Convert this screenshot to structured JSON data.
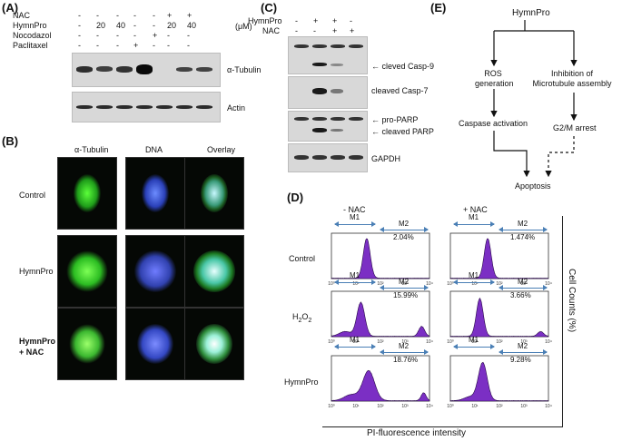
{
  "panelA": {
    "letter": "(A)",
    "rows": [
      {
        "name": "NAC",
        "values": [
          "-",
          "-",
          "-",
          "-",
          "-",
          "+",
          "+"
        ]
      },
      {
        "name": "HymnPro",
        "values": [
          "-",
          "20",
          "40",
          "-",
          "-",
          "20",
          "40"
        ]
      },
      {
        "name": "Nocodazol",
        "values": [
          "-",
          "-",
          "-",
          "-",
          "+",
          "-",
          "-"
        ]
      },
      {
        "name": "Paclitaxel",
        "values": [
          "-",
          "-",
          "-",
          "+",
          "-",
          "-",
          "-"
        ]
      }
    ],
    "unit": "(μM)",
    "blot_labels": [
      "α-Tubulin",
      "Actin"
    ],
    "tubulin_intensity": [
      0.55,
      0.35,
      0.5,
      1.0,
      0.0,
      0.3,
      0.3
    ]
  },
  "panelB": {
    "letter": "(B)",
    "columns": [
      "α-Tubulin",
      "DNA",
      "Overlay"
    ],
    "rows": [
      "Control",
      "HymnPro",
      "HymnPro\n+ NAC"
    ]
  },
  "panelC": {
    "letter": "(C)",
    "rows": [
      {
        "name": "HymnPro",
        "values": [
          "-",
          "+",
          "+",
          "-"
        ]
      },
      {
        "name": "NAC",
        "values": [
          "-",
          "-",
          "+",
          "+"
        ]
      }
    ],
    "blot_labels": [
      "cleved Casp-9",
      "cleaved Casp-7",
      "pro-PARP",
      "cleaved PARP",
      "GAPDH"
    ]
  },
  "panelD": {
    "letter": "(D)",
    "col_headers": [
      "- NAC",
      "+ NAC"
    ],
    "row_labels": [
      "Control",
      "H2O2",
      "HymnPro"
    ],
    "gate_labels": [
      "M1",
      "M2"
    ],
    "m2_percent": [
      [
        "2.04%",
        "1.474%"
      ],
      [
        "15.99%",
        "3.66%"
      ],
      [
        "18.76%",
        "9.28%"
      ]
    ],
    "x_title": "PI-fluorescence  intensity",
    "y_title": "Cell Counts (%)",
    "tick_labels": [
      "10⁰",
      "10¹",
      "10²",
      "10³",
      "10⁴"
    ]
  },
  "panelE": {
    "letter": "(E)",
    "top": "HymnPro",
    "left_1": "ROS\ngeneration",
    "right_1": "Inhibition of\nMicrotubule assembly",
    "left_2": "Caspase activation",
    "right_2": "G2/M arrest",
    "bottom": "Apoptosis"
  },
  "colors": {
    "histogram_fill": "#7b2fc4",
    "gate_arrow": "#4a7fb5",
    "tubulin": "#39d62b",
    "dna": "#3f64e8"
  }
}
